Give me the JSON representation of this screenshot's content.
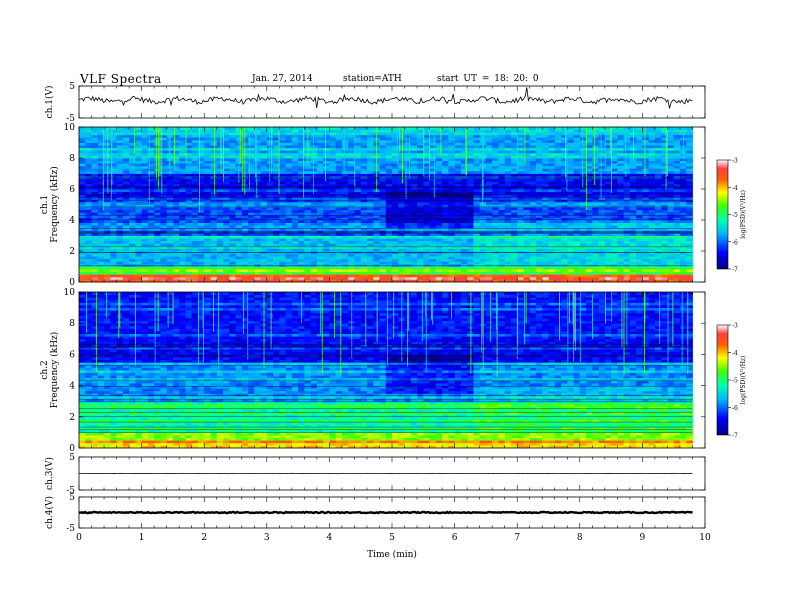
{
  "header": {
    "title": "VLF  Spectra",
    "date": "Jan. 27, 2014",
    "station": "station=ATH",
    "start_time": "start  UT =   18: 20: 0"
  },
  "chart_data": [
    {
      "type": "line",
      "ylabel": "ch.1(V)",
      "ylim": [
        -5,
        5
      ],
      "y_ticks": [
        "5",
        "-5"
      ],
      "description_series": "ch.1 waveform amplitude near 0.6 V with small spikes",
      "x_range": [
        0,
        9.8
      ],
      "level": 0.6
    },
    {
      "type": "heatmap",
      "ylabel": "ch.1\nFrequency (kHz)",
      "ylim": [
        0,
        10
      ],
      "y_ticks": [
        "0",
        "2",
        "4",
        "6",
        "8",
        "10"
      ],
      "x_range": [
        0,
        9.8
      ],
      "colorbar": {
        "label": "log(PSD)(V²/Hz)",
        "range": [
          -7,
          -3
        ],
        "ticks": [
          "-3",
          "-4",
          "-5",
          "-6",
          "-7"
        ]
      },
      "quiet_segment_min": [
        4.9,
        6.3
      ]
    },
    {
      "type": "heatmap",
      "ylabel": "ch.2\nFrequency (kHz)",
      "ylim": [
        0,
        10
      ],
      "y_ticks": [
        "0",
        "2",
        "4",
        "6",
        "8",
        "10"
      ],
      "x_range": [
        0,
        9.8
      ],
      "colorbar": {
        "label": "log(PSD)(V²/Hz)",
        "range": [
          -7,
          -3
        ],
        "ticks": [
          "-3",
          "-4",
          "-5",
          "-6",
          "-7"
        ]
      },
      "quiet_segment_min": [
        4.9,
        6.3
      ]
    },
    {
      "type": "line",
      "ylabel": "ch.3(V)",
      "ylim": [
        -5,
        5
      ],
      "y_ticks": [
        "5",
        "-5"
      ],
      "x_range": [
        0,
        9.8
      ],
      "level": 0
    },
    {
      "type": "line",
      "ylabel": "ch.4(V)",
      "ylim": [
        -5,
        5
      ],
      "y_ticks": [
        "5",
        "-5"
      ],
      "x_range": [
        0,
        9.8
      ],
      "level": 0
    }
  ],
  "x_axis": {
    "label": "Time  (min)",
    "ticks": [
      "0",
      "1",
      "2",
      "3",
      "4",
      "5",
      "6",
      "7",
      "8",
      "9",
      "10"
    ],
    "xlim": [
      0,
      10
    ]
  }
}
